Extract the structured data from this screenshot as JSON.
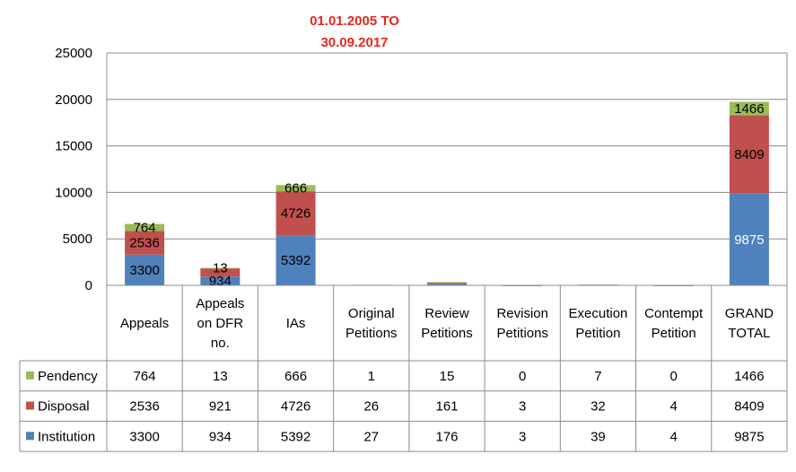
{
  "chart_data": {
    "type": "bar",
    "stacked": true,
    "title_lines": [
      "01.01.2005  TO",
      "30.09.2017"
    ],
    "categories": [
      [
        "Appeals"
      ],
      [
        "Appeals",
        "on DFR",
        "no."
      ],
      [
        "IAs"
      ],
      [
        "Original",
        "Petitions"
      ],
      [
        "Review",
        "Petitions"
      ],
      [
        "Revision",
        "Petitions"
      ],
      [
        "Execution",
        "Petition"
      ],
      [
        "Contempt",
        "Petition"
      ],
      [
        "GRAND",
        "TOTAL"
      ]
    ],
    "ylim": [
      0,
      25000
    ],
    "yticks": [
      "0",
      "5000",
      "10000",
      "15000",
      "20000",
      "25000"
    ],
    "grid": true,
    "legend_placement": "in data table (left)",
    "series": [
      {
        "name": "Institution",
        "color": "#4f81bd",
        "values": [
          3300,
          934,
          5392,
          27,
          176,
          3,
          39,
          4,
          9875
        ]
      },
      {
        "name": "Disposal",
        "color": "#c0504d",
        "values": [
          2536,
          921,
          4726,
          26,
          161,
          3,
          32,
          4,
          8409
        ]
      },
      {
        "name": "Pendency",
        "color": "#9bbb59",
        "values": [
          764,
          13,
          666,
          1,
          15,
          0,
          7,
          0,
          1466
        ]
      }
    ],
    "bar_labels": [
      {
        "series": 0,
        "category": 0,
        "text": "3300"
      },
      {
        "series": 1,
        "category": 0,
        "text": "2536"
      },
      {
        "series": 2,
        "category": 0,
        "text": "764"
      },
      {
        "series": 0,
        "category": 1,
        "text": "934"
      },
      {
        "series": 2,
        "category": 1,
        "text": "13"
      },
      {
        "series": 0,
        "category": 2,
        "text": "5392"
      },
      {
        "series": 1,
        "category": 2,
        "text": "4726"
      },
      {
        "series": 2,
        "category": 2,
        "text": "666"
      },
      {
        "series": 0,
        "category": 8,
        "text": "9875",
        "inverse": true
      },
      {
        "series": 1,
        "category": 8,
        "text": "8409"
      },
      {
        "series": 2,
        "category": 8,
        "text": "1466"
      }
    ],
    "table_rows": [
      {
        "label": "Pendency",
        "series": 2,
        "cells": [
          "764",
          "13",
          "666",
          "1",
          "15",
          "0",
          "7",
          "0",
          "1466"
        ]
      },
      {
        "label": "Disposal",
        "series": 1,
        "cells": [
          "2536",
          "921",
          "4726",
          "26",
          "161",
          "3",
          "32",
          "4",
          "8409"
        ]
      },
      {
        "label": "Institution",
        "series": 0,
        "cells": [
          "3300",
          "934",
          "5392",
          "27",
          "176",
          "3",
          "39",
          "4",
          "9875"
        ]
      }
    ]
  }
}
